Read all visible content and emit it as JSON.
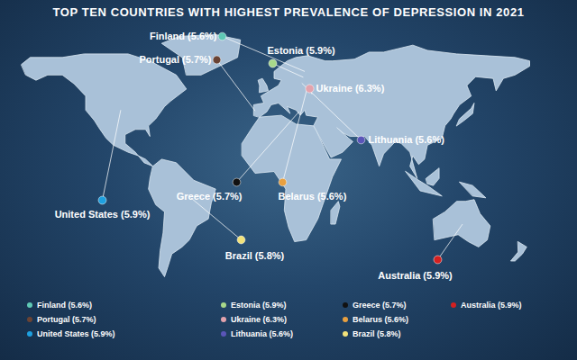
{
  "chart_data": {
    "type": "map",
    "title": "TOP TEN COUNTRIES WITH HIGHEST PREVALENCE OF DEPRESSION IN 2021",
    "categories": [
      "Finland",
      "Portugal",
      "United States",
      "Estonia",
      "Ukraine",
      "Lithuania",
      "Greece",
      "Belarus",
      "Brazil",
      "Australia"
    ],
    "values": [
      5.6,
      5.7,
      5.9,
      5.9,
      6.3,
      5.6,
      5.7,
      5.6,
      5.8,
      5.9
    ],
    "value_labels": [
      "Finland (5.6%)",
      "Portugal (5.7%)",
      "United States (5.9%)",
      "Estonia (5.9%)",
      "Ukraine (6.3%)",
      "Lithuania (5.6%)",
      "Greece (5.7%)",
      "Belarus (5.6%)",
      "Brazil (5.8%)",
      "Australia (5.9%)"
    ],
    "colors": [
      "#5fc9b5",
      "#6a4334",
      "#1ea0e0",
      "#a8d88a",
      "#e3a3ad",
      "#5a55b8",
      "#111111",
      "#e8a040",
      "#f2e27a",
      "#d42020"
    ]
  }
}
